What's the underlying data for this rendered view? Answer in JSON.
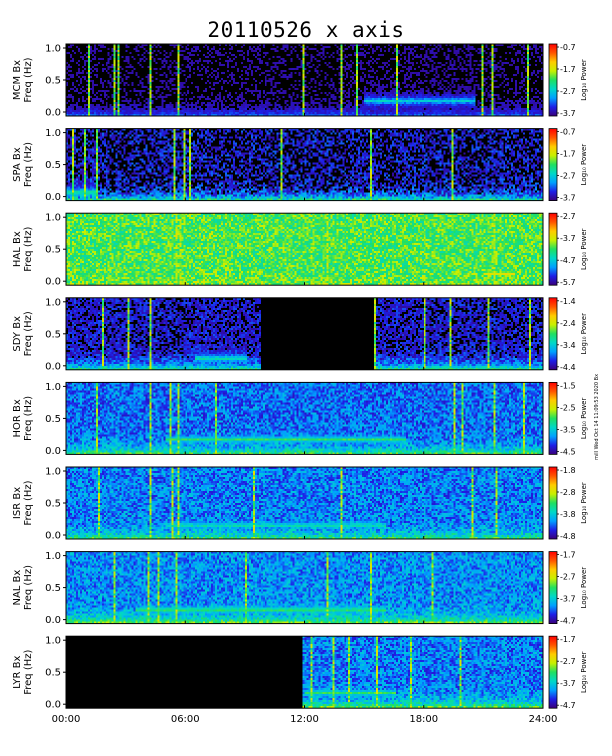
{
  "title": "20110526 x axis",
  "side_note": "mill Wed Oct 14 11:09:53 2020 Bx",
  "time_ticks": [
    "00:00",
    "06:00",
    "12:00",
    "18:00",
    "24:00"
  ],
  "freq_ticks": [
    "0.0",
    "0.5",
    "1.0"
  ],
  "freq_label": "Freq (Hz)",
  "power_label": "Log₁₀ Power",
  "colors": {
    "scale": [
      "#3a007a",
      "#1e1ee6",
      "#00a0ff",
      "#00d8c8",
      "#20e060",
      "#c8f000",
      "#ffcc00",
      "#ff5500",
      "#ff0000"
    ],
    "background": "#000000"
  },
  "chart_data": [
    {
      "type": "heatmap",
      "station": "MCM",
      "ylabel": "MCM Bx",
      "xlabel": "",
      "ylim": [
        0,
        1.0
      ],
      "xlim": [
        0,
        24
      ],
      "colorbar_ticks": [
        "-0.7",
        "-1.7",
        "-2.7",
        "-3.7"
      ],
      "colorbar_range": [
        -3.7,
        -0.7
      ],
      "no_data_hours": [],
      "base": 0.02,
      "noise": 0.05,
      "low_freq_boost": 0.15,
      "bursts_hours": [
        1.1,
        2.4,
        2.55,
        4.2,
        5.6,
        11.9,
        13.8,
        14.6,
        16.6,
        20.9,
        21.4,
        23.2
      ],
      "hump": {
        "start_hr": 15.0,
        "end_hr": 20.5,
        "freq": 0.2,
        "level": 0.35
      }
    },
    {
      "type": "heatmap",
      "station": "SPA",
      "ylabel": "SPA Bx",
      "xlabel": "",
      "ylim": [
        0,
        1.0
      ],
      "xlim": [
        0,
        24
      ],
      "colorbar_ticks": [
        "-0.7",
        "-1.7",
        "-2.7",
        "-3.7"
      ],
      "colorbar_range": [
        -3.7,
        -0.7
      ],
      "no_data_hours": [],
      "base": 0.05,
      "noise": 0.15,
      "low_freq_boost": 0.35,
      "bursts_hours": [
        0.3,
        0.9,
        1.5,
        5.4,
        5.9,
        6.2,
        10.8,
        15.3,
        19.4
      ],
      "hump": {
        "start_hr": 0.0,
        "end_hr": 1.5,
        "freq": 0.1,
        "level": 0.5
      }
    },
    {
      "type": "heatmap",
      "station": "HAL",
      "ylabel": "HAL Bx",
      "xlabel": "",
      "ylim": [
        0,
        1.0
      ],
      "xlim": [
        0,
        24
      ],
      "colorbar_ticks": [
        "-2.7",
        "-3.7",
        "-4.7",
        "-5.7"
      ],
      "colorbar_range": [
        -5.7,
        -2.7
      ],
      "no_data_hours": [],
      "base": 0.52,
      "noise": 0.12,
      "low_freq_boost": 0.05,
      "bursts_hours": [
        5.5,
        5.7,
        8.0,
        13.1,
        21.5
      ],
      "hump": {
        "start_hr": 21.0,
        "end_hr": 22.5,
        "freq": 0.15,
        "level": 0.75
      }
    },
    {
      "type": "heatmap",
      "station": "SDY",
      "ylabel": "SDY Bx",
      "xlabel": "",
      "ylim": [
        0,
        1.0
      ],
      "xlim": [
        0,
        24
      ],
      "colorbar_ticks": [
        "-1.4",
        "-2.4",
        "-3.4",
        "-4.4"
      ],
      "colorbar_range": [
        -4.4,
        -1.4
      ],
      "no_data_hours": [
        [
          9.75,
          15.45
        ]
      ],
      "base": 0.08,
      "noise": 0.1,
      "low_freq_boost": 0.35,
      "bursts_hours": [
        1.8,
        3.1,
        4.2,
        15.5,
        18.0,
        19.3,
        21.2,
        23.3
      ],
      "hump": {
        "start_hr": 6.5,
        "end_hr": 9.0,
        "freq": 0.15,
        "level": 0.45
      }
    },
    {
      "type": "heatmap",
      "station": "HOR",
      "ylabel": "HOR Bx",
      "xlabel": "",
      "ylim": [
        0,
        1.0
      ],
      "xlim": [
        0,
        24
      ],
      "colorbar_ticks": [
        "-1.5",
        "-2.5",
        "-3.5",
        "-4.5"
      ],
      "colorbar_range": [
        -4.5,
        -1.5
      ],
      "no_data_hours": [],
      "base": 0.2,
      "noise": 0.12,
      "low_freq_boost": 0.3,
      "bursts_hours": [
        1.5,
        4.2,
        5.2,
        5.6,
        7.5,
        19.5,
        19.9,
        21.5,
        23.0
      ],
      "hump": {
        "start_hr": 5.0,
        "end_hr": 17.0,
        "freq": 0.2,
        "level": 0.5
      }
    },
    {
      "type": "heatmap",
      "station": "ISR",
      "ylabel": "ISR Bx",
      "xlabel": "",
      "ylim": [
        0,
        1.0
      ],
      "xlim": [
        0,
        24
      ],
      "colorbar_ticks": [
        "-1.8",
        "-2.8",
        "-3.8",
        "-4.8"
      ],
      "colorbar_range": [
        -4.8,
        -1.8
      ],
      "no_data_hours": [],
      "base": 0.22,
      "noise": 0.12,
      "low_freq_boost": 0.25,
      "bursts_hours": [
        1.6,
        4.2,
        5.3,
        5.6,
        9.4,
        13.8,
        20.4,
        21.6
      ],
      "hump": {
        "start_hr": 5.0,
        "end_hr": 16.0,
        "freq": 0.18,
        "level": 0.45
      }
    },
    {
      "type": "heatmap",
      "station": "NAL",
      "ylabel": "NAL Bx",
      "xlabel": "",
      "ylim": [
        0,
        1.0
      ],
      "xlim": [
        0,
        24
      ],
      "colorbar_ticks": [
        "-1.7",
        "-2.7",
        "-3.7",
        "-4.7"
      ],
      "colorbar_range": [
        -4.7,
        -1.7
      ],
      "no_data_hours": [],
      "base": 0.24,
      "noise": 0.12,
      "low_freq_boost": 0.3,
      "bursts_hours": [
        2.4,
        4.1,
        4.6,
        5.5,
        9.0,
        13.1,
        15.3,
        18.4
      ],
      "hump": {
        "start_hr": 3.5,
        "end_hr": 16.0,
        "freq": 0.18,
        "level": 0.55
      }
    },
    {
      "type": "heatmap",
      "station": "LYR",
      "ylabel": "LYR Bx",
      "xlabel": "",
      "ylim": [
        0,
        1.0
      ],
      "xlim": [
        0,
        24
      ],
      "colorbar_ticks": [
        "-1.7",
        "-2.7",
        "-3.7",
        "-4.7"
      ],
      "colorbar_range": [
        -4.7,
        -1.7
      ],
      "no_data_hours": [
        [
          0.0,
          11.9
        ]
      ],
      "base": 0.22,
      "noise": 0.12,
      "low_freq_boost": 0.3,
      "bursts_hours": [
        12.3,
        13.4,
        14.2,
        15.6,
        17.3,
        19.8
      ],
      "hump": {
        "start_hr": 12.0,
        "end_hr": 16.5,
        "freq": 0.2,
        "level": 0.5
      }
    }
  ]
}
